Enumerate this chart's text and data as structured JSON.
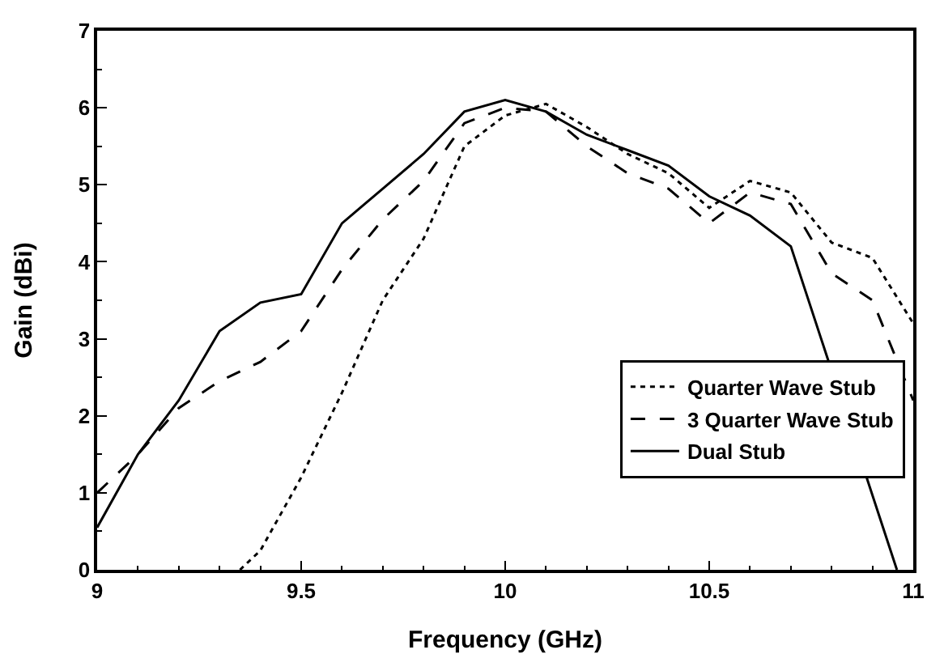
{
  "chart_data": {
    "type": "line",
    "xlabel": "Frequency (GHz)",
    "ylabel": "Gain (dBi)",
    "xlim": [
      9,
      11
    ],
    "xticks": [
      9,
      9.5,
      10,
      10.5,
      11
    ],
    "ylim": [
      0,
      7
    ],
    "yticks": [
      0,
      1,
      2,
      3,
      4,
      5,
      6,
      7
    ],
    "grid": false,
    "legend": "bottom right",
    "marker": "none",
    "series": [
      {
        "name": "Quarter Wave Stub",
        "color": "#000000",
        "line_style": "dotted",
        "x": [
          9.35,
          9.4,
          9.5,
          9.6,
          9.7,
          9.8,
          9.9,
          10,
          10.1,
          10.2,
          10.3,
          10.4,
          10.5,
          10.6,
          10.7,
          10.8,
          10.9,
          11
        ],
        "values": [
          0,
          0.25,
          1.2,
          2.3,
          3.5,
          4.3,
          5.5,
          5.9,
          6.05,
          5.75,
          5.4,
          5.15,
          4.7,
          5.05,
          4.9,
          4.25,
          4.05,
          3.2
        ]
      },
      {
        "name": "3 Quarter Wave Stub",
        "color": "#000000",
        "line_style": "dashed",
        "x": [
          9,
          9.1,
          9.2,
          9.3,
          9.4,
          9.5,
          9.6,
          9.7,
          9.8,
          9.9,
          10,
          10.1,
          10.2,
          10.3,
          10.4,
          10.5,
          10.6,
          10.7,
          10.8,
          10.9,
          11
        ],
        "values": [
          1.0,
          1.5,
          2.1,
          2.45,
          2.7,
          3.1,
          3.9,
          4.55,
          5.05,
          5.8,
          6.0,
          5.95,
          5.5,
          5.15,
          4.95,
          4.5,
          4.9,
          4.75,
          3.85,
          3.5,
          2.2
        ]
      },
      {
        "name": "Dual Stub",
        "color": "#000000",
        "line_style": "solid",
        "x": [
          9,
          9.1,
          9.2,
          9.3,
          9.4,
          9.5,
          9.6,
          9.7,
          9.8,
          9.9,
          10,
          10.1,
          10.2,
          10.3,
          10.4,
          10.5,
          10.6,
          10.7,
          10.96
        ],
        "values": [
          0.55,
          1.5,
          2.2,
          3.1,
          3.47,
          3.58,
          4.5,
          4.95,
          5.4,
          5.95,
          6.1,
          5.95,
          5.65,
          5.45,
          5.25,
          4.85,
          4.6,
          4.2,
          0
        ]
      }
    ]
  }
}
